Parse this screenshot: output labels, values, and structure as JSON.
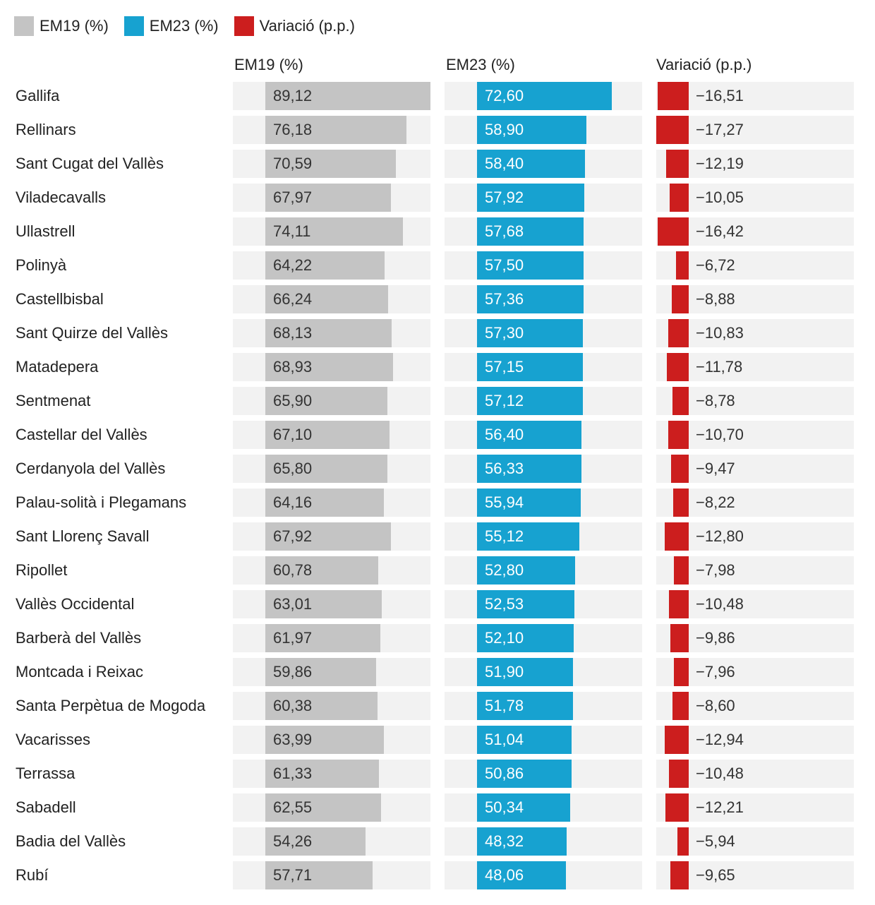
{
  "colors": {
    "em19": "#c4c4c4",
    "em23": "#17a2d0",
    "variacio": "#cc1e1e",
    "cell_background": "#f2f2f2",
    "text_on_blue": "#ffffff",
    "text_dark": "#333333"
  },
  "legend": [
    {
      "label": "EM19 (%)",
      "series": "em19"
    },
    {
      "label": "EM23 (%)",
      "series": "em23"
    },
    {
      "label": "Variació (p.p.)",
      "series": "variacio"
    }
  ],
  "columns": [
    {
      "key": "em19",
      "header": "EM19 (%)"
    },
    {
      "key": "em23",
      "header": "EM23 (%)"
    },
    {
      "key": "variacio",
      "header": "Variació (p.p.)"
    }
  ],
  "chart_data": {
    "type": "bar",
    "orientation": "horizontal",
    "categories": [
      "Gallifa",
      "Rellinars",
      "Sant Cugat del Vallès",
      "Viladecavalls",
      "Ullastrell",
      "Polinyà",
      "Castellbisbal",
      "Sant Quirze del Vallès",
      "Matadepera",
      "Sentmenat",
      "Castellar del Vallès",
      "Cerdanyola del Vallès",
      "Palau-solità i Plegamans",
      "Sant Llorenç Savall",
      "Ripollet",
      "Vallès Occidental",
      "Barberà del Vallès",
      "Montcada i Reixac",
      "Santa Perpètua de Mogoda",
      "Vacarisses",
      "Terrassa",
      "Sabadell",
      "Badia del Vallès",
      "Rubí"
    ],
    "series": [
      {
        "name": "EM19 (%)",
        "key": "em19",
        "values": [
          89.12,
          76.18,
          70.59,
          67.97,
          74.11,
          64.22,
          66.24,
          68.13,
          68.93,
          65.9,
          67.1,
          65.8,
          64.16,
          67.92,
          60.78,
          63.01,
          61.97,
          59.86,
          60.38,
          63.99,
          61.33,
          62.55,
          54.26,
          57.71
        ],
        "labels": [
          "89,12",
          "76,18",
          "70,59",
          "67,97",
          "74,11",
          "64,22",
          "66,24",
          "68,13",
          "68,93",
          "65,90",
          "67,10",
          "65,80",
          "64,16",
          "67,92",
          "60,78",
          "63,01",
          "61,97",
          "59,86",
          "60,38",
          "63,99",
          "61,33",
          "62,55",
          "54,26",
          "57,71"
        ]
      },
      {
        "name": "EM23 (%)",
        "key": "em23",
        "values": [
          72.6,
          58.9,
          58.4,
          57.92,
          57.68,
          57.5,
          57.36,
          57.3,
          57.15,
          57.12,
          56.4,
          56.33,
          55.94,
          55.12,
          52.8,
          52.53,
          52.1,
          51.9,
          51.78,
          51.04,
          50.86,
          50.34,
          48.32,
          48.06
        ],
        "labels": [
          "72,60",
          "58,90",
          "58,40",
          "57,92",
          "57,68",
          "57,50",
          "57,36",
          "57,30",
          "57,15",
          "57,12",
          "56,40",
          "56,33",
          "55,94",
          "55,12",
          "52,80",
          "52,53",
          "52,10",
          "51,90",
          "51,78",
          "51,04",
          "50,86",
          "50,34",
          "48,32",
          "48,06"
        ]
      },
      {
        "name": "Variació (p.p.)",
        "key": "variacio",
        "values": [
          -16.51,
          -17.27,
          -12.19,
          -10.05,
          -16.42,
          -6.72,
          -8.88,
          -10.83,
          -11.78,
          -8.78,
          -10.7,
          -9.47,
          -8.22,
          -12.8,
          -7.98,
          -10.48,
          -9.86,
          -7.96,
          -8.6,
          -12.94,
          -10.48,
          -12.21,
          -5.94,
          -9.65
        ],
        "labels": [
          "−16,51",
          "−17,27",
          "−12,19",
          "−10,05",
          "−16,42",
          "−6,72",
          "−8,88",
          "−10,83",
          "−11,78",
          "−8,78",
          "−10,70",
          "−9,47",
          "−8,22",
          "−12,80",
          "−7,98",
          "−10,48",
          "−9,86",
          "−7,96",
          "−8,60",
          "−12,94",
          "−10,48",
          "−12,21",
          "−5,94",
          "−9,65"
        ]
      }
    ],
    "legend_position": "top-left",
    "grid": false
  }
}
